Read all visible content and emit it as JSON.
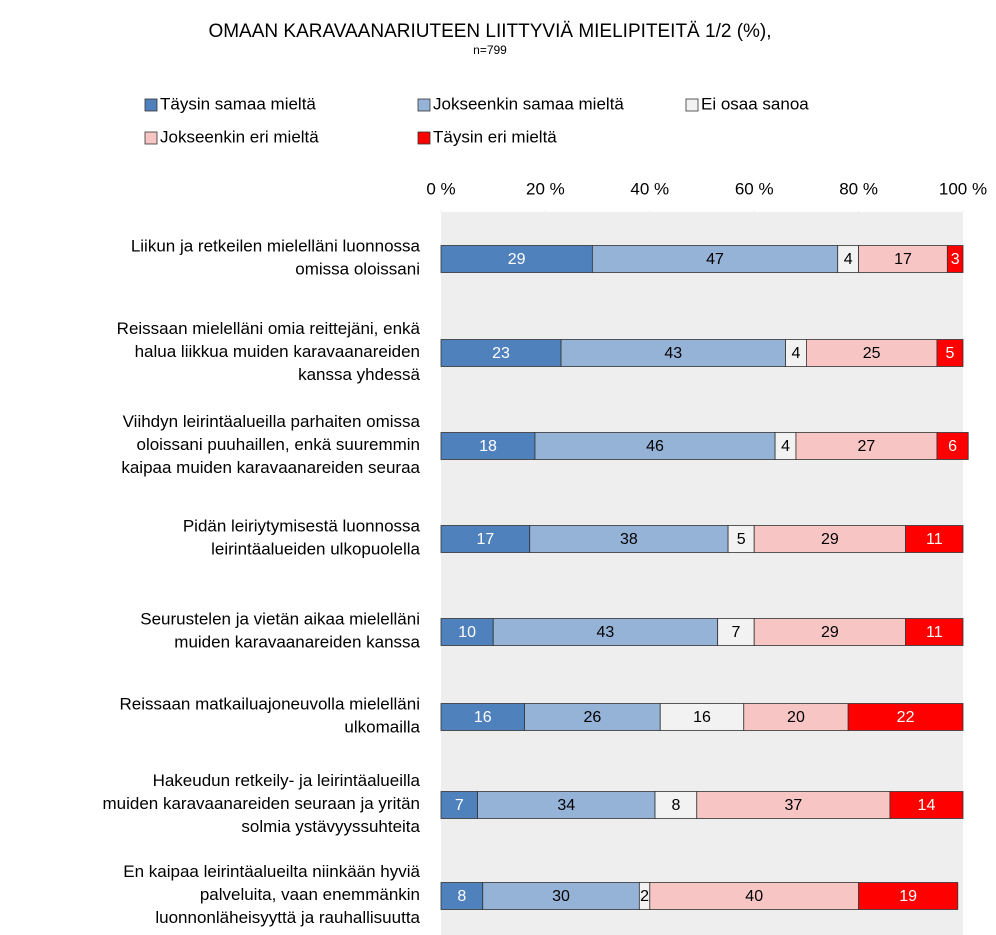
{
  "chart_data": {
    "type": "stacked-barh",
    "title": "OMAAN KARAVAANARIUTEEN LIITTYVIÄ  MIELIPITEITÄ  1/2 (%),",
    "subtitle": "n=799",
    "categories": [
      "Liikun ja retkeilen mielelläni luonnossa\nomissa oloissani",
      "Reissaan mielelläni omia reittejäni, enkä\nhalua liikkua muiden karavaanareiden\nkanssa yhdessä",
      "Viihdyn leirintäalueilla parhaiten omissa\noloissani puuhaillen, enkä suuremmin\nkaipaa muiden karavaanareiden seuraa",
      "Pidän leiriytymisestä luonnossa\nleirintäalueiden ulkopuolella",
      "Seurustelen ja vietän aikaa mielelläni\nmuiden karavaanareiden kanssa",
      "Reissaan matkailuajoneuvolla mielelläni\nulkomailla",
      "Hakeudun retkeily- ja leirintäalueilla\nmuiden karavaanareiden seuraan ja yritän\nsolmia ystävyyssuhteita",
      "En kaipaa leirintäalueilta niinkään hyviä\npalveluita, vaan enemmänkin\nluonnonläheisyyttä ja rauhallisuutta"
    ],
    "series": [
      {
        "name": "Täysin samaa mieltä",
        "color": "#4f81bd",
        "values": [
          29,
          23,
          18,
          17,
          10,
          16,
          7,
          8
        ]
      },
      {
        "name": "Jokseenkin samaa mieltä",
        "color": "#95b3d7",
        "values": [
          47,
          43,
          46,
          38,
          43,
          26,
          34,
          30
        ]
      },
      {
        "name": "Ei osaa sanoa",
        "color": "#f2f2f2",
        "values": [
          4,
          4,
          4,
          5,
          7,
          16,
          8,
          2
        ]
      },
      {
        "name": "Jokseenkin eri mieltä",
        "color": "#f8c5c5",
        "values": [
          17,
          25,
          27,
          29,
          29,
          20,
          37,
          40
        ]
      },
      {
        "name": "Täysin eri mieltä",
        "color": "#ff0000",
        "values": [
          3,
          5,
          6,
          11,
          11,
          22,
          14,
          19
        ]
      }
    ],
    "xlim": [
      0,
      100
    ],
    "xticks": [
      {
        "value": 0,
        "label": "0 %"
      },
      {
        "value": 20,
        "label": "20 %"
      },
      {
        "value": 40,
        "label": "40 %"
      },
      {
        "value": 60,
        "label": "60 %"
      },
      {
        "value": 80,
        "label": "80 %"
      },
      {
        "value": 100,
        "label": "100 %"
      }
    ]
  }
}
